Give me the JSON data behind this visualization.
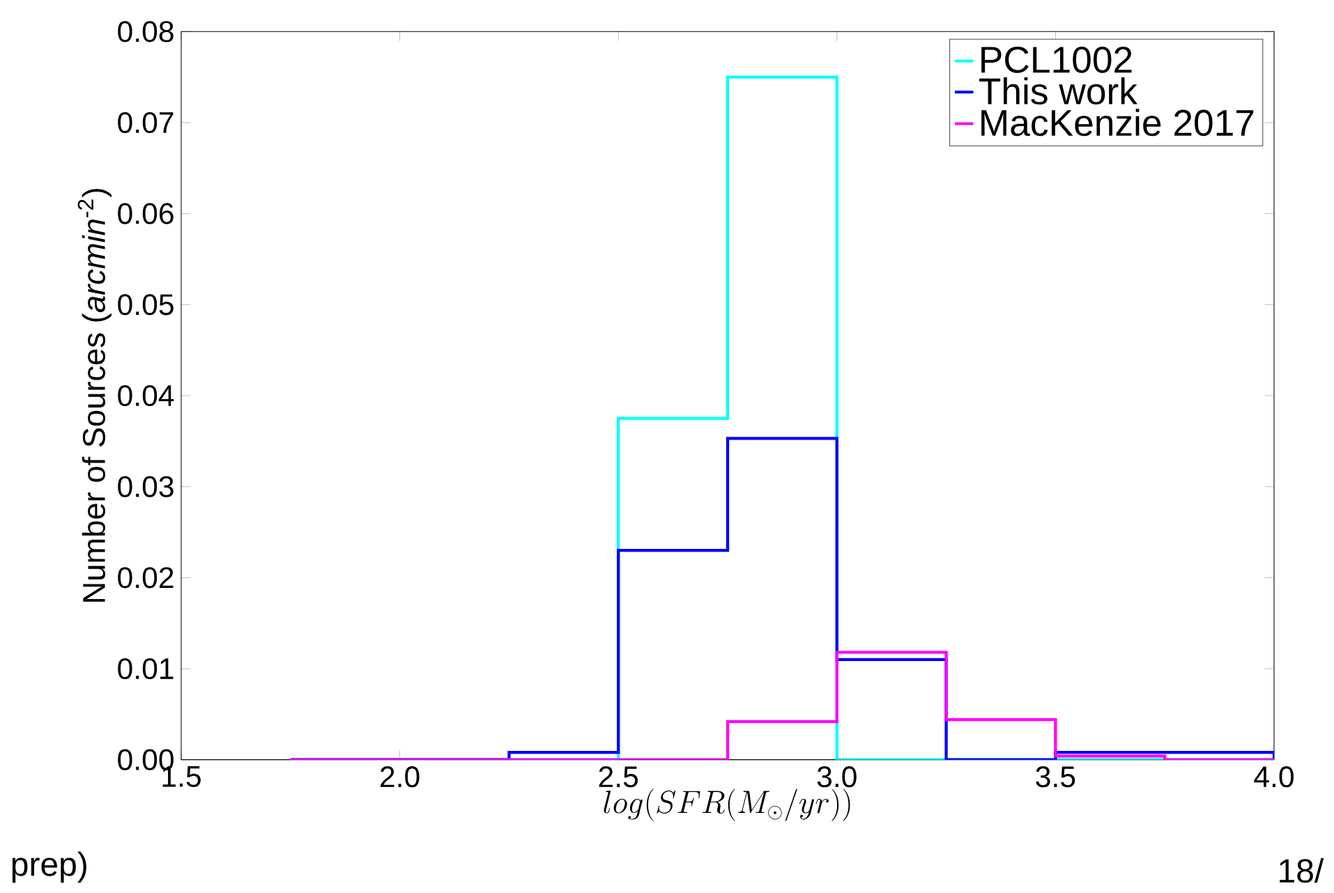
{
  "chart_data": {
    "type": "histogram",
    "xlabel": "log(SFR(M_{\\odot}/yr))",
    "ylabel": "Number of Sources (*arcmin*$^{-2}$)",
    "bins": [
      1.75,
      2.0,
      2.25,
      2.5,
      2.75,
      3.0,
      3.25,
      3.5,
      3.75,
      4.0
    ],
    "series": [
      {
        "name": "PCL1002",
        "color": "#00ffff",
        "values": [
          0,
          0,
          0,
          0.0375,
          0.075,
          0,
          0,
          0,
          0
        ]
      },
      {
        "name": "This work",
        "color": "#0000ff",
        "values": [
          0,
          0,
          0.0008,
          0.023,
          0.0353,
          0.011,
          0,
          0.0008,
          0.0008
        ]
      },
      {
        "name": "MacKenzie 2017",
        "color": "#ff00ff",
        "values": [
          0,
          0,
          0,
          0,
          0.0042,
          0.0118,
          0.0044,
          0.0004,
          0
        ]
      }
    ],
    "xlim": [
      1.5,
      4.0
    ],
    "ylim": [
      0,
      0.08
    ],
    "xticks": [
      {
        "value": 1.5,
        "label": "1.5"
      },
      {
        "value": 2.0,
        "label": "2.0"
      },
      {
        "value": 2.5,
        "label": "2.5"
      },
      {
        "value": 3.0,
        "label": "3.0"
      },
      {
        "value": 3.5,
        "label": "3.5"
      },
      {
        "value": 4.0,
        "label": "4.0"
      }
    ],
    "yticks": [
      {
        "value": 0,
        "label": "0.00"
      },
      {
        "value": 0.01,
        "label": "0.01"
      },
      {
        "value": 0.02,
        "label": "0.02"
      },
      {
        "value": 0.03,
        "label": "0.03"
      },
      {
        "value": 0.04,
        "label": "0.04"
      },
      {
        "value": 0.05,
        "label": "0.05"
      },
      {
        "value": 0.06,
        "label": "0.06"
      },
      {
        "value": 0.07,
        "label": "0.07"
      },
      {
        "value": 0.08,
        "label": "0.08"
      }
    ],
    "legend": "top right",
    "grid": false,
    "annotations": [
      "prep)",
      "18/"
    ]
  }
}
